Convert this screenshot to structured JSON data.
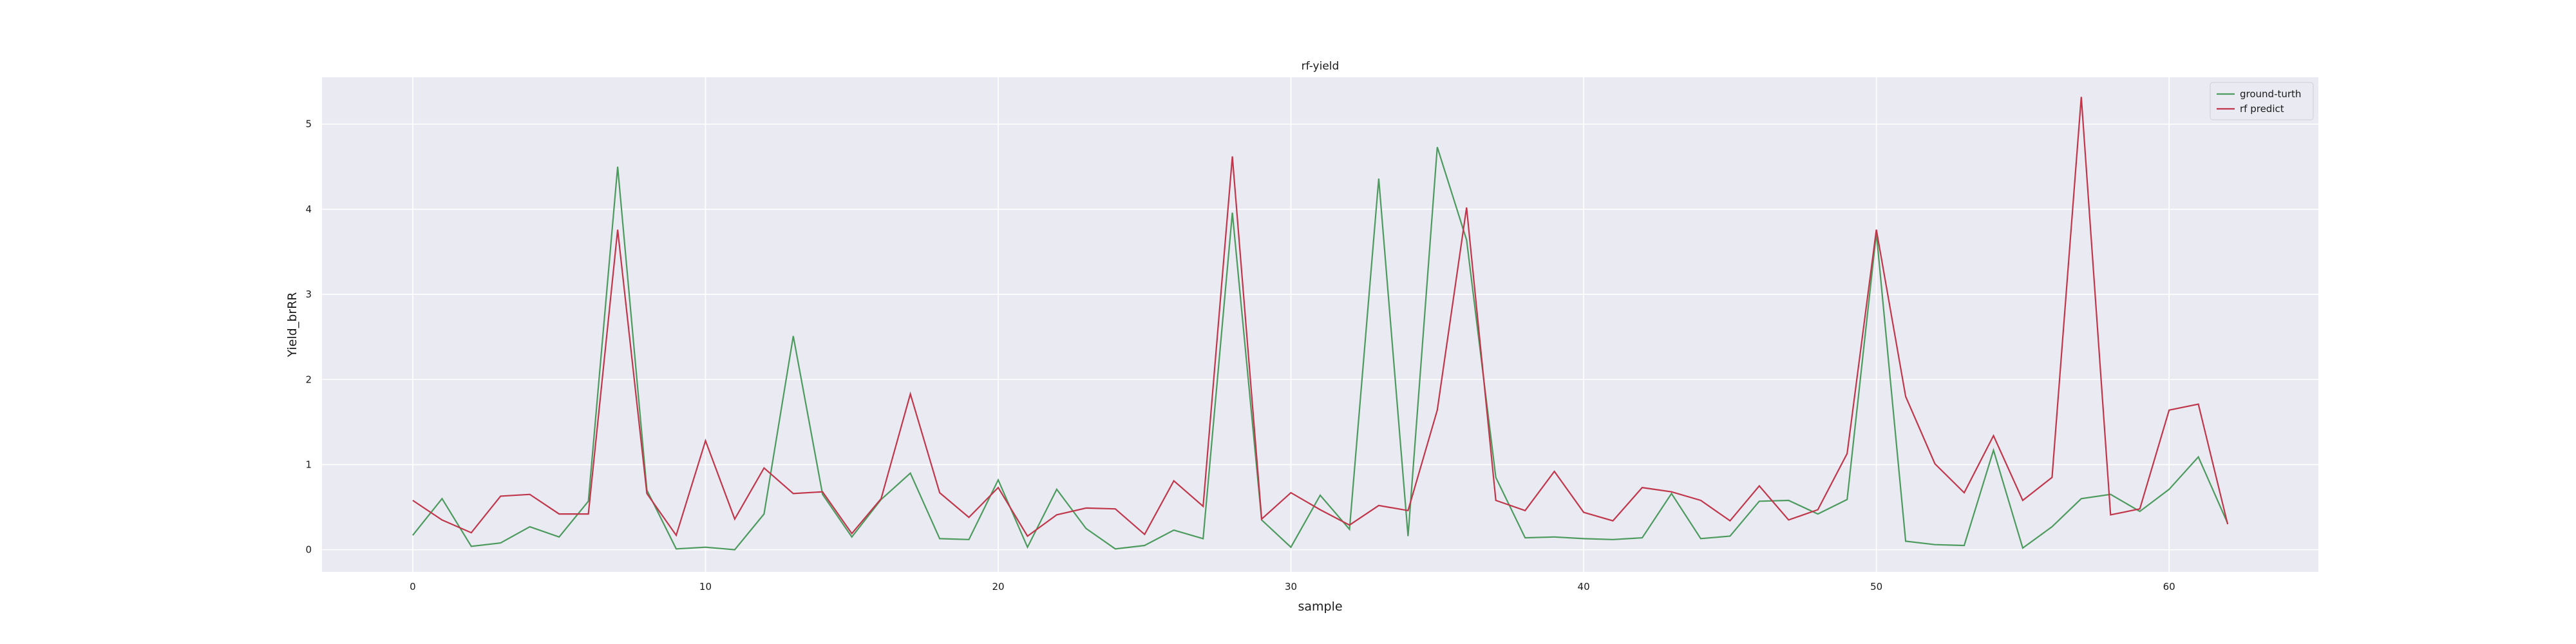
{
  "chart_data": {
    "type": "line",
    "title": "rf-yield",
    "xlabel": "sample",
    "ylabel": "Yield_brRR",
    "xlim": [
      -3.1,
      65.1
    ],
    "ylim": [
      -0.26,
      5.55
    ],
    "xticks": [
      0,
      10,
      20,
      30,
      40,
      50,
      60
    ],
    "yticks": [
      0,
      1,
      2,
      3,
      4,
      5
    ],
    "grid": true,
    "legend_position": "top-right",
    "background": "#eaeaf2",
    "series": [
      {
        "name": "ground-turth",
        "color": "#4c9a5e",
        "values": [
          0.17,
          0.6,
          0.04,
          0.08,
          0.27,
          0.15,
          0.57,
          4.5,
          0.7,
          0.01,
          0.03,
          0.0,
          0.42,
          2.51,
          0.65,
          0.15,
          0.59,
          0.9,
          0.13,
          0.12,
          0.82,
          0.03,
          0.71,
          0.25,
          0.01,
          0.05,
          0.23,
          0.13,
          3.96,
          0.35,
          0.03,
          0.64,
          0.24,
          4.36,
          0.16,
          4.73,
          3.64,
          0.85,
          0.14,
          0.15,
          0.13,
          0.12,
          0.14,
          0.66,
          0.13,
          0.16,
          0.57,
          0.58,
          0.42,
          0.59,
          3.72,
          0.1,
          0.06,
          0.05,
          1.17,
          0.02,
          0.27,
          0.6,
          0.65,
          0.45,
          0.71,
          1.09,
          0.31
        ]
      },
      {
        "name": "rf predict",
        "color": "#c0364a",
        "values": [
          0.58,
          0.35,
          0.2,
          0.63,
          0.65,
          0.42,
          0.42,
          3.76,
          0.66,
          0.17,
          1.28,
          0.36,
          0.96,
          0.66,
          0.68,
          0.19,
          0.6,
          1.83,
          0.67,
          0.38,
          0.73,
          0.16,
          0.41,
          0.49,
          0.48,
          0.18,
          0.81,
          0.51,
          4.62,
          0.36,
          0.67,
          0.47,
          0.29,
          0.52,
          0.46,
          1.64,
          4.02,
          0.58,
          0.46,
          0.92,
          0.44,
          0.34,
          0.73,
          0.68,
          0.58,
          0.34,
          0.75,
          0.35,
          0.47,
          1.13,
          3.76,
          1.8,
          1.01,
          0.67,
          1.34,
          0.58,
          0.85,
          5.32,
          0.41,
          0.48,
          1.64,
          1.71,
          0.3
        ]
      }
    ]
  }
}
